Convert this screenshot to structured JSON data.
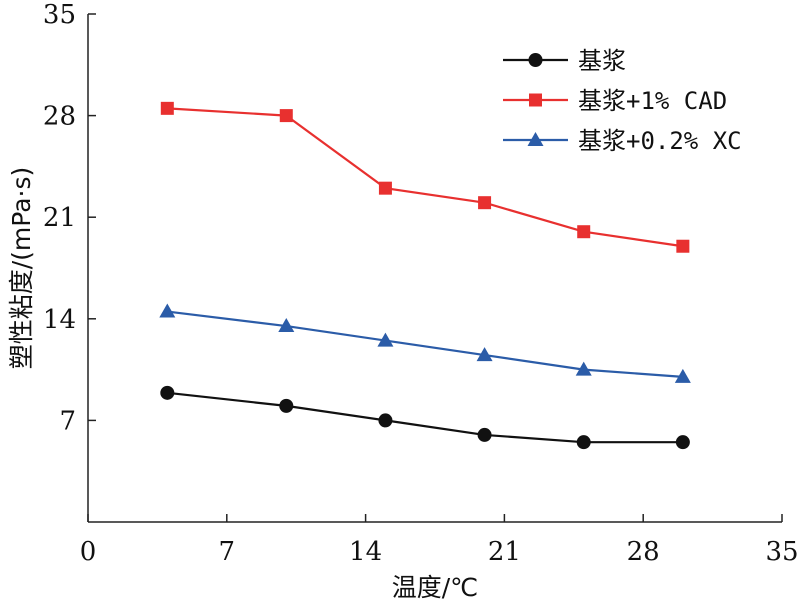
{
  "chart_data": {
    "type": "line",
    "xlabel": "温度/℃",
    "ylabel": "塑性粘度/(mPa·s)",
    "xlim": [
      0,
      35
    ],
    "ylim": [
      0,
      35
    ],
    "xticks": [
      "0",
      "7",
      "14",
      "21",
      "28",
      "35"
    ],
    "yticks": [
      "7",
      "14",
      "21",
      "28",
      "35"
    ],
    "x": [
      4,
      10,
      15,
      20,
      25,
      30
    ],
    "grid": false,
    "legend_position": "top-right",
    "series": [
      {
        "name": "基浆",
        "color": "#111111",
        "marker": "circle",
        "values": [
          8.9,
          8.0,
          7.0,
          6.0,
          5.5,
          5.5
        ]
      },
      {
        "name": "基浆+1% CAD",
        "color": "#e8302f",
        "marker": "square",
        "values": [
          28.5,
          28.0,
          23.0,
          22.0,
          20.0,
          19.0
        ]
      },
      {
        "name": "基浆+0.2% XC",
        "color": "#2b5ca8",
        "marker": "triangle",
        "values": [
          14.5,
          13.5,
          12.5,
          11.5,
          10.5,
          10.0
        ]
      }
    ]
  }
}
